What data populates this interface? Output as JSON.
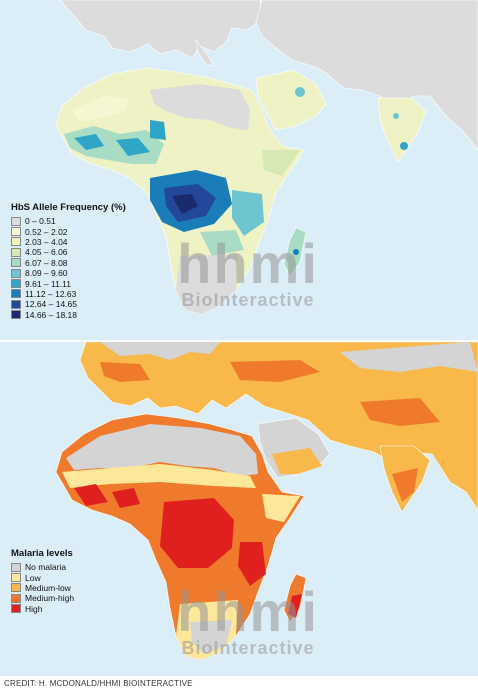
{
  "hbs_legend": {
    "title": "HbS Allele Frequency (%)",
    "items": [
      {
        "label": "0 – 0.51",
        "color": "#dcdcdc"
      },
      {
        "label": "0.52 – 2.02",
        "color": "#f7f6d2"
      },
      {
        "label": "2.03 – 4.04",
        "color": "#eef1bd"
      },
      {
        "label": "4.05 – 6.06",
        "color": "#d6e9b4"
      },
      {
        "label": "6.07 – 8.08",
        "color": "#a9dcc4"
      },
      {
        "label": "8.09 – 9.60",
        "color": "#6fc5cf"
      },
      {
        "label": "9.61 – 11.11",
        "color": "#2fa6c7"
      },
      {
        "label": "11.12 – 12.63",
        "color": "#1b7db8"
      },
      {
        "label": "12.64 – 14.65",
        "color": "#23489a"
      },
      {
        "label": "14.66 – 18.18",
        "color": "#1a2a6c"
      }
    ]
  },
  "malaria_legend": {
    "title": "Malaria levels",
    "items": [
      {
        "label": "No malaria",
        "color": "#d4d4d4"
      },
      {
        "label": "Low",
        "color": "#fde79a"
      },
      {
        "label": "Medium-low",
        "color": "#f8b84a"
      },
      {
        "label": "Medium-high",
        "color": "#ef7a2c"
      },
      {
        "label": "High",
        "color": "#e0201f"
      }
    ]
  },
  "watermark": {
    "logo": "hhmi",
    "text": "BioInteractive"
  },
  "credit": "CREDIT: H. MCDONALD/HHMI BIOINTERACTIVE",
  "colors": {
    "ocean": "#dbeef8",
    "land_nodata": "#d4d4d4"
  }
}
